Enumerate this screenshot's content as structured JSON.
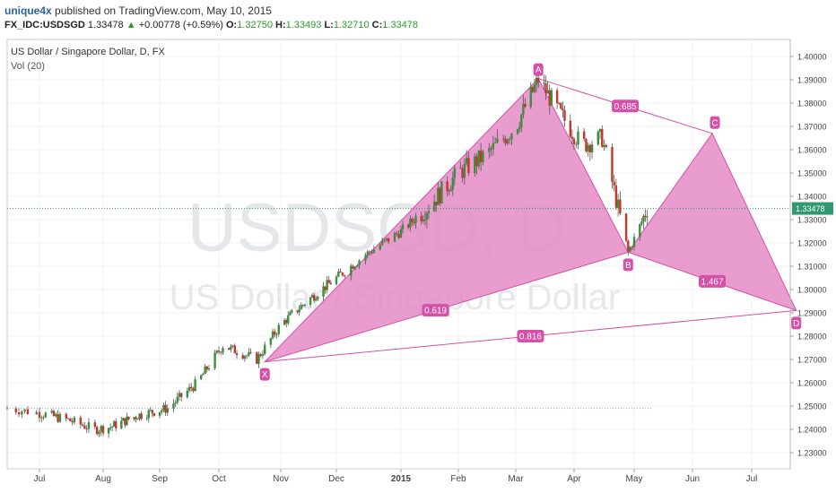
{
  "header": {
    "username": "unique4x",
    "published_text": "published on TradingView.com, May 10, 2015",
    "symbol": "FX_IDC:USDSGD",
    "last": "1.33478",
    "change_arrow": "▲",
    "change": "+0.00778 (+0.59%)",
    "o_label": "O:",
    "o_value": "1.32750",
    "h_label": "H:",
    "h_value": "1.33493",
    "l_label": "L:",
    "l_value": "1.32710",
    "c_label": "C:",
    "c_value": "1.33478"
  },
  "panel": {
    "title": "US Dollar / Singapore Dollar, D, FX",
    "volume_label": "Vol (20)"
  },
  "watermark": {
    "symbol": "USDSGD, D",
    "name": "US Dollar / Singapore Dollar"
  },
  "chart_data": {
    "type": "candlestick",
    "ylim": [
      1.225,
      1.405
    ],
    "y_ticks": [
      "1.40000",
      "1.39000",
      "1.38000",
      "1.37000",
      "1.36000",
      "1.35000",
      "1.34000",
      "1.33000",
      "1.32000",
      "1.31000",
      "1.30000",
      "1.29000",
      "1.28000",
      "1.27000",
      "1.26000",
      "1.25000",
      "1.24000",
      "1.23000"
    ],
    "x_ticks": [
      "Jul",
      "Aug",
      "Sep",
      "Oct",
      "Nov",
      "Dec",
      "2015",
      "Feb",
      "Mar",
      "Apr",
      "May",
      "Jun",
      "Jul"
    ],
    "last_price_label": "1.33478",
    "last_price": 1.33478,
    "price_series": [
      [
        "2014-06-20",
        1.249
      ],
      [
        "2014-07-01",
        1.247
      ],
      [
        "2014-07-15",
        1.244
      ],
      [
        "2014-07-28",
        1.24
      ],
      [
        "2014-08-05",
        1.241
      ],
      [
        "2014-08-20",
        1.246
      ],
      [
        "2014-09-05",
        1.249
      ],
      [
        "2014-09-20",
        1.26
      ],
      [
        "2014-10-03",
        1.276
      ],
      [
        "2014-10-20",
        1.27
      ],
      [
        "2014-11-01",
        1.285
      ],
      [
        "2014-11-15",
        1.295
      ],
      [
        "2014-12-01",
        1.305
      ],
      [
        "2014-12-15",
        1.315
      ],
      [
        "2015-01-01",
        1.325
      ],
      [
        "2015-01-15",
        1.335
      ],
      [
        "2015-02-01",
        1.35
      ],
      [
        "2015-02-15",
        1.358
      ],
      [
        "2015-03-01",
        1.37
      ],
      [
        "2015-03-13",
        1.39
      ],
      [
        "2015-03-25",
        1.375
      ],
      [
        "2015-04-05",
        1.362
      ],
      [
        "2015-04-15",
        1.365
      ],
      [
        "2015-04-28",
        1.316
      ],
      [
        "2015-05-08",
        1.33478
      ]
    ],
    "harmonic_pattern": {
      "points": [
        {
          "label": "X",
          "date": "2014-10-24",
          "price": 1.269
        },
        {
          "label": "A",
          "date": "2015-03-13",
          "price": 1.3905
        },
        {
          "label": "B",
          "date": "2015-04-28",
          "price": 1.316
        },
        {
          "label": "C",
          "date": "2015-06-11",
          "price": 1.367
        },
        {
          "label": "D",
          "date": "2015-07-24",
          "price": 1.291
        }
      ],
      "ratios": [
        {
          "between": "X-B",
          "value": "0.619"
        },
        {
          "between": "A-C",
          "value": "0.685"
        },
        {
          "between": "B-D",
          "value": "1.467"
        },
        {
          "between": "X-D",
          "value": "0.816"
        }
      ],
      "color": "#d64fa8",
      "fill": "#e48cc6"
    },
    "horizontal_levels": [
      {
        "price": 1.249,
        "color": "#7fb3e8",
        "style": "dotted"
      },
      {
        "price": 1.33478,
        "color": "#2e9a6e",
        "style": "dotted"
      }
    ],
    "colors": {
      "up": "#3c8e3c",
      "down": "#c0392b",
      "wick": "#555555",
      "grid": "#eef0f3",
      "label_bg": "#2e9a6e"
    }
  }
}
